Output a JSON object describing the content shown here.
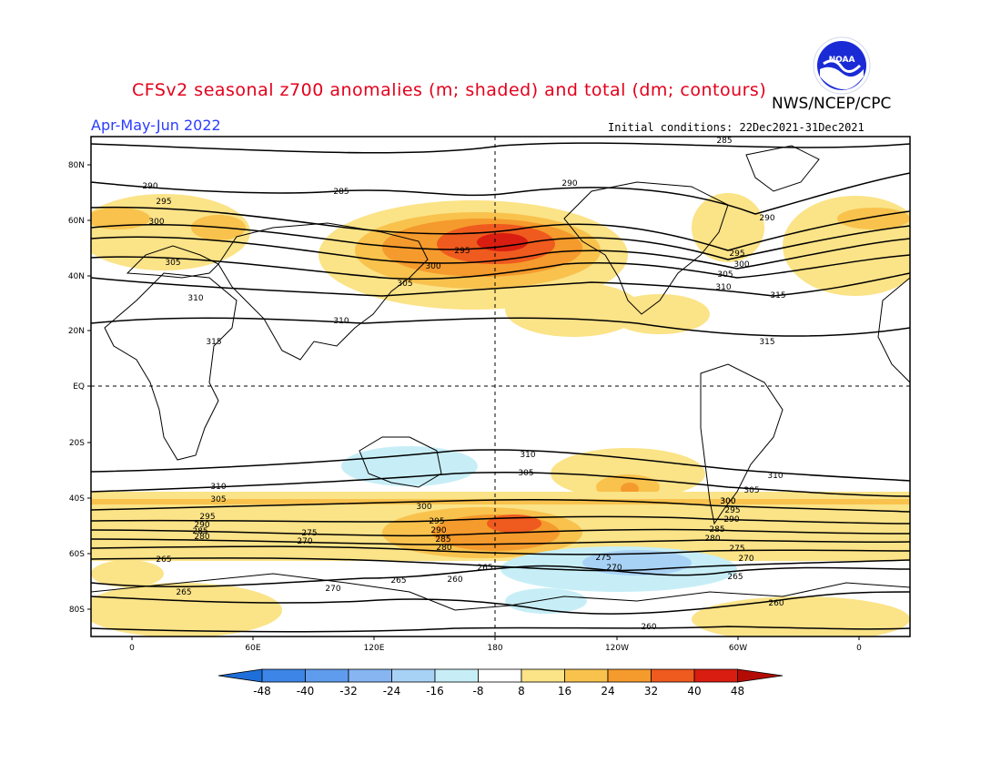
{
  "header": {
    "title": "CFSv2 seasonal z700 anomalies (m; shaded) and total (dm; contours)",
    "agency": "NWS/NCEP/CPC",
    "season": "Apr-May-Jun 2022",
    "initial_conditions": "Initial conditions: 22Dec2021-31Dec2021",
    "logo_text": "NOAA"
  },
  "map": {
    "lat_ticks": [
      "80N",
      "60N",
      "40N",
      "20N",
      "EQ",
      "20S",
      "40S",
      "60S",
      "80S"
    ],
    "lon_ticks": [
      "0",
      "60E",
      "120E",
      "180",
      "120W",
      "60W",
      "0"
    ]
  },
  "colorbar": {
    "labels": [
      "-48",
      "-40",
      "-32",
      "-24",
      "-16",
      "-8",
      "8",
      "16",
      "24",
      "32",
      "40",
      "48"
    ],
    "colors": [
      "#1e6fd9",
      "#3d85e6",
      "#5f9ced",
      "#86b5f2",
      "#a8d2f5",
      "#c7eef7",
      "#ffffff",
      "#fbe387",
      "#f8c24d",
      "#f59a2c",
      "#ef5a1e",
      "#d91d10",
      "#b30c05"
    ]
  },
  "contour_labels": {
    "north": [
      "290",
      "295",
      "300",
      "305",
      "310",
      "315",
      "285",
      "290",
      "295",
      "300",
      "305",
      "310",
      "285",
      "290",
      "295",
      "300",
      "305",
      "310",
      "315",
      "315"
    ],
    "south": [
      "310",
      "305",
      "300",
      "295",
      "290",
      "285",
      "280",
      "275",
      "270",
      "265",
      "260",
      "310",
      "305",
      "300",
      "295",
      "290",
      "285",
      "280",
      "275",
      "270",
      "265",
      "265",
      "270",
      "265",
      "260",
      "260",
      "295",
      "290",
      "285",
      "280",
      "275",
      "270",
      "265",
      "310",
      "305",
      "300"
    ]
  }
}
